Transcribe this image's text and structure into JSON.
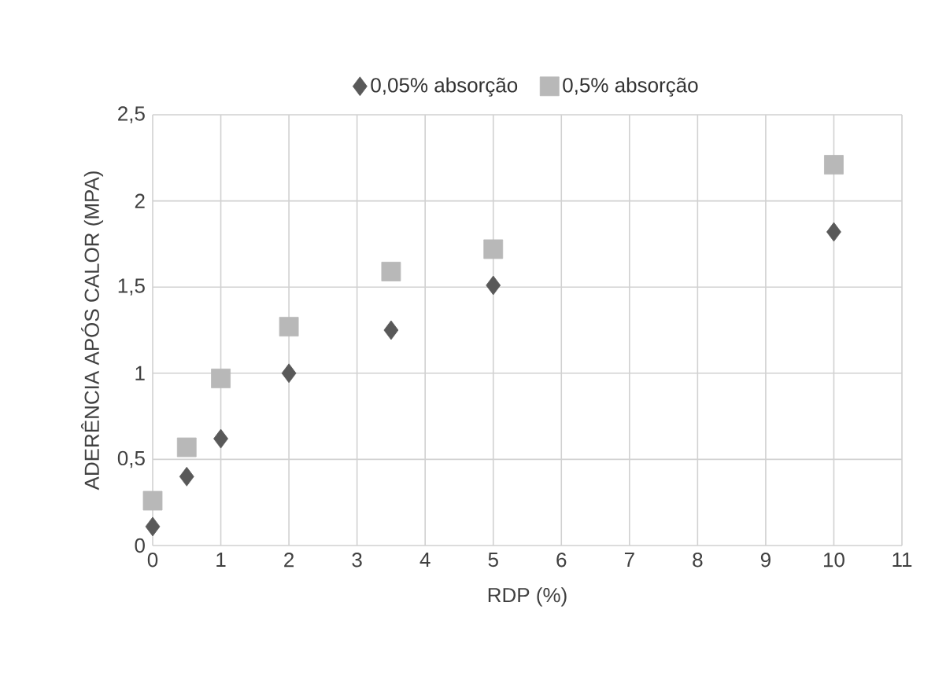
{
  "chart_data": {
    "type": "scatter",
    "xlabel": "RDP (%)",
    "ylabel": "ADERÊNCIA APÓS CALOR (MPA)",
    "xlim": [
      0,
      11
    ],
    "xticks": [
      0,
      1,
      2,
      3,
      4,
      5,
      6,
      7,
      8,
      9,
      10,
      11
    ],
    "ylim": [
      0,
      2.5
    ],
    "yticks": [
      0,
      {
        "value": 0.5,
        "label": "0,5"
      },
      1,
      {
        "value": 1.5,
        "label": "1,5"
      },
      2,
      {
        "value": 2.5,
        "label": "2,5"
      }
    ],
    "grid": true,
    "legend": "top",
    "series": [
      {
        "name": "0,05% absorção",
        "color": "#595959",
        "marker": "diamond",
        "x": [
          0,
          0.5,
          1,
          2,
          3.5,
          5,
          10
        ],
        "values": [
          0.11,
          0.4,
          0.62,
          1.0,
          1.25,
          1.51,
          1.82
        ]
      },
      {
        "name": "0,5% absorção",
        "color": "#b8b8b8",
        "marker": "square",
        "x": [
          0,
          0.5,
          1,
          2,
          3.5,
          5,
          10
        ],
        "values": [
          0.26,
          0.57,
          0.97,
          1.27,
          1.59,
          1.72,
          2.21
        ]
      }
    ]
  }
}
